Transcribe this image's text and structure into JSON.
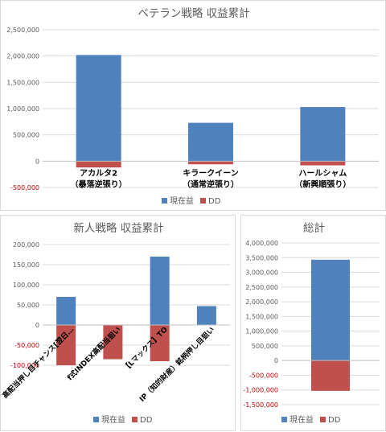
{
  "chart_data": [
    {
      "type": "bar",
      "stacked": true,
      "title": "ベテラン戦略 収益累計",
      "categories": [
        "アカルタ2\n（暴落逆張り）",
        "キラークイーン\n（通常逆張り）",
        "ハールシャム\n（新興順張り）"
      ],
      "series": [
        {
          "name": "現在益",
          "color": "#4f81bd",
          "values": [
            2020000,
            730000,
            1030000
          ]
        },
        {
          "name": "DD",
          "color": "#c0504d",
          "values": [
            -120000,
            -60000,
            -80000
          ]
        }
      ],
      "ylim": [
        -500000,
        2500000
      ],
      "yticks": [
        -500000,
        0,
        500000,
        1000000,
        1500000,
        2000000,
        2500000
      ],
      "ytick_labels": [
        "-500,000",
        "0",
        "500,000",
        "1,000,000",
        "1,500,000",
        "2,000,000",
        "2,500,000"
      ],
      "grid": true,
      "legend": "bottom"
    },
    {
      "type": "bar",
      "stacked": true,
      "title": "新人戦略 収益累計",
      "categories": [
        "高配当押し目チャンス[翌日…",
        "f式INDEX高配当狙い",
        "【Lマックス】TO",
        "IP（知的財産）銘柄押し目狙い"
      ],
      "series": [
        {
          "name": "現在益",
          "color": "#4f81bd",
          "values": [
            70000,
            0,
            170000,
            47000
          ]
        },
        {
          "name": "DD",
          "color": "#c0504d",
          "values": [
            -100000,
            -85000,
            -90000,
            0
          ]
        }
      ],
      "ylim": [
        -100000,
        200000
      ],
      "yticks": [
        -100000,
        -50000,
        0,
        50000,
        100000,
        150000,
        200000
      ],
      "ytick_labels": [
        "-100,000",
        "-50,000",
        "0",
        "50,000",
        "100,000",
        "150,000",
        "200,000"
      ],
      "grid": true,
      "legend": "bottom"
    },
    {
      "type": "bar",
      "stacked": true,
      "title": "総計",
      "categories": [
        ""
      ],
      "series": [
        {
          "name": "現在益",
          "color": "#4f81bd",
          "values": [
            3430000
          ]
        },
        {
          "name": "DD",
          "color": "#c0504d",
          "values": [
            -1030000
          ]
        }
      ],
      "ylim": [
        -1500000,
        4000000
      ],
      "yticks": [
        -1500000,
        -1000000,
        -500000,
        0,
        500000,
        1000000,
        1500000,
        2000000,
        2500000,
        3000000,
        3500000,
        4000000
      ],
      "ytick_labels": [
        "-1,500,000",
        "-1,000,000",
        "-500,000",
        "0",
        "500,000",
        "1,000,000",
        "1,500,000",
        "2,000,000",
        "2,500,000",
        "3,000,000",
        "3,500,000",
        "4,000,000"
      ],
      "grid": true,
      "legend": "bottom"
    }
  ]
}
